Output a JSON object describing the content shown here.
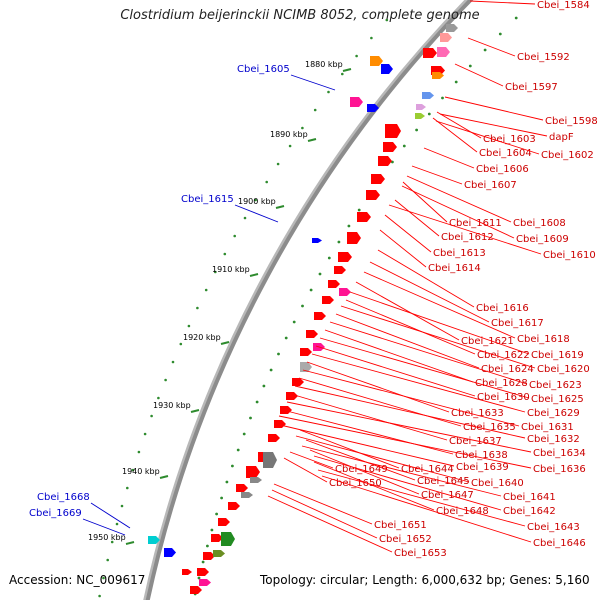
{
  "title": "Clostridium beijerinckii NCIMB 8052, complete genome",
  "footer": {
    "accession": "Accession: NC_009617",
    "topology": "Topology: circular; Length: 6,000,632 bp; Genes: 5,160"
  },
  "colors": {
    "backbone": "#8c8c8c",
    "tick": "#2e8b2e",
    "gene_default": "#ff0000",
    "label_red": "#cc0000",
    "label_blue": "#0000cc"
  },
  "scale_ticks": [
    "1880 kbp",
    "1890 kbp",
    "1900 kbp",
    "1910 kbp",
    "1920 kbp",
    "1930 kbp",
    "1940 kbp",
    "1950 kbp"
  ],
  "blue_labels": [
    "Cbei_1605",
    "Cbei_1615",
    "Cbei_1668",
    "Cbei_1669"
  ],
  "red_labels": [
    "Cbei_1584",
    "Cbei_1592",
    "Cbei_1597",
    "Cbei_1598",
    "Cbei_1603",
    "dapF",
    "Cbei_1604",
    "Cbei_1602",
    "Cbei_1606",
    "Cbei_1607",
    "Cbei_1608",
    "Cbei_1611",
    "Cbei_1609",
    "Cbei_1612",
    "Cbei_1610",
    "Cbei_1613",
    "Cbei_1614",
    "Cbei_1616",
    "Cbei_1617",
    "Cbei_1618",
    "Cbei_1621",
    "Cbei_1619",
    "Cbei_1622",
    "Cbei_1620",
    "Cbei_1624",
    "Cbei_1623",
    "Cbei_1628",
    "Cbei_1625",
    "Cbei_1630",
    "Cbei_1629",
    "Cbei_1633",
    "Cbei_1631",
    "Cbei_1635",
    "Cbei_1632",
    "Cbei_1637",
    "Cbei_1634",
    "Cbei_1638",
    "Cbei_1636",
    "Cbei_1639",
    "Cbei_1649",
    "Cbei_1644",
    "Cbei_1640",
    "Cbei_1650",
    "Cbei_1645",
    "Cbei_1641",
    "Cbei_1647",
    "Cbei_1642",
    "Cbei_1648",
    "Cbei_1643",
    "Cbei_1646",
    "Cbei_1651",
    "Cbei_1652",
    "Cbei_1653"
  ]
}
